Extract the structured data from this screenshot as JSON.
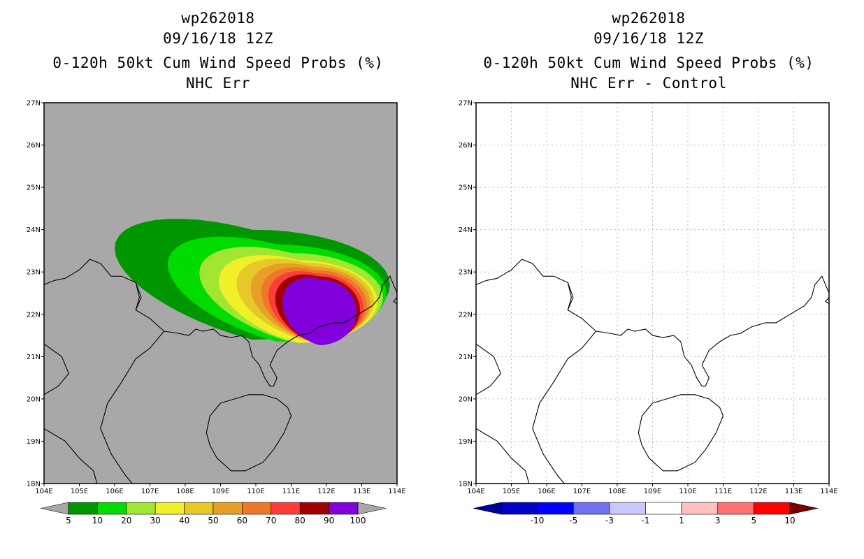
{
  "panels": [
    {
      "id": "left",
      "storm_id": "wp262018",
      "datetime": "09/16/18 12Z",
      "product_title": "0-120h 50kt Cum Wind Speed Probs (%)",
      "subtitle": "NHC Err",
      "background": "#a8a8a8"
    },
    {
      "id": "right",
      "storm_id": "wp262018",
      "datetime": "09/16/18 12Z",
      "product_title": "0-120h 50kt Cum Wind Speed Probs (%)",
      "subtitle": "NHC Err - Control",
      "background": "#ffffff"
    }
  ],
  "axes": {
    "lat_labels": [
      "18N",
      "19N",
      "20N",
      "21N",
      "22N",
      "23N",
      "24N",
      "25N",
      "26N",
      "27N"
    ],
    "lon_labels": [
      "104E",
      "105E",
      "106E",
      "107E",
      "108E",
      "109E",
      "110E",
      "111E",
      "112E",
      "113E",
      "114E"
    ],
    "lat_range": [
      18,
      27
    ],
    "lon_range": [
      104,
      114
    ]
  },
  "prob_colorbar": {
    "labels": [
      "5",
      "10",
      "20",
      "30",
      "40",
      "50",
      "60",
      "70",
      "80",
      "90",
      "100"
    ],
    "colors": [
      "#009600",
      "#00dc00",
      "#a0e632",
      "#f0f028",
      "#e6c828",
      "#e6a028",
      "#ef7828",
      "#ff3c3c",
      "#a00000",
      "#8200dc"
    ],
    "end_color": "#a8a8a8"
  },
  "diff_colorbar": {
    "labels": [
      "-10",
      "-5",
      "-3",
      "-1",
      "1",
      "3",
      "5",
      "10"
    ],
    "colors": [
      "#0000c8",
      "#0000ff",
      "#7070f0",
      "#c8c8ff",
      "#ffffff",
      "#ffc0c0",
      "#ff7070",
      "#ff0000"
    ],
    "end_left_color": "#000096",
    "end_right_color": "#780000"
  },
  "probability_levels": [
    {
      "level": 5,
      "color": "#009600",
      "center": [
        109.9,
        22.7
      ],
      "rx": 3.9,
      "ry": 1.3
    },
    {
      "level": 10,
      "color": "#00dc00",
      "center": [
        110.6,
        22.5
      ],
      "rx": 3.1,
      "ry": 1.15
    },
    {
      "level": 20,
      "color": "#a0e632",
      "center": [
        111.0,
        22.4
      ],
      "rx": 2.6,
      "ry": 1.05
    },
    {
      "level": 30,
      "color": "#f0f028",
      "center": [
        111.2,
        22.3
      ],
      "rx": 2.25,
      "ry": 0.98
    },
    {
      "level": 40,
      "color": "#e6c828",
      "center": [
        111.4,
        22.3
      ],
      "rx": 1.95,
      "ry": 0.92
    },
    {
      "level": 50,
      "color": "#e6a028",
      "center": [
        111.55,
        22.25
      ],
      "rx": 1.7,
      "ry": 0.88
    },
    {
      "level": 60,
      "color": "#ef7828",
      "center": [
        111.65,
        22.2
      ],
      "rx": 1.5,
      "ry": 0.85
    },
    {
      "level": 70,
      "color": "#ff3c3c",
      "center": [
        111.7,
        22.15
      ],
      "rx": 1.35,
      "ry": 0.82
    },
    {
      "level": 80,
      "color": "#a00000",
      "center": [
        111.75,
        22.1
      ],
      "rx": 1.2,
      "ry": 0.8
    },
    {
      "level": 90,
      "color": "#8200dc",
      "center": [
        111.8,
        22.05
      ],
      "rx": 1.05,
      "ry": 0.78
    }
  ]
}
